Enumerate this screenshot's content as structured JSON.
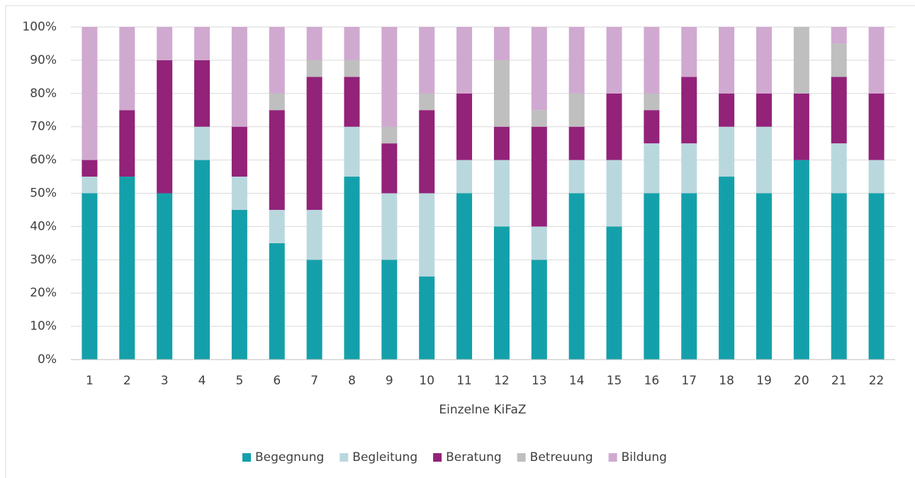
{
  "chart_data": {
    "type": "stacked_bar",
    "xlabel": "Einzelne KiFaZ",
    "categories": [
      "1",
      "2",
      "3",
      "4",
      "5",
      "6",
      "7",
      "8",
      "9",
      "10",
      "11",
      "12",
      "13",
      "14",
      "15",
      "16",
      "17",
      "18",
      "19",
      "20",
      "21",
      "22"
    ],
    "series": [
      {
        "name": "Begegnung",
        "color": "#14a0aa",
        "values": [
          50,
          55,
          50,
          60,
          45,
          35,
          30,
          55,
          30,
          25,
          50,
          40,
          30,
          50,
          40,
          50,
          50,
          55,
          50,
          60,
          50,
          50
        ]
      },
      {
        "name": "Begleitung",
        "color": "#b9d8de",
        "values": [
          5,
          0,
          0,
          10,
          10,
          10,
          15,
          15,
          20,
          25,
          10,
          20,
          10,
          10,
          20,
          15,
          15,
          15,
          20,
          0,
          15,
          10
        ]
      },
      {
        "name": "Beratung",
        "color": "#932279",
        "values": [
          5,
          20,
          40,
          20,
          15,
          30,
          40,
          15,
          15,
          25,
          20,
          10,
          30,
          10,
          20,
          10,
          20,
          10,
          10,
          20,
          20,
          20
        ]
      },
      {
        "name": "Betreuung",
        "color": "#bfbfbf",
        "values": [
          0,
          0,
          0,
          0,
          0,
          5,
          5,
          5,
          5,
          5,
          0,
          20,
          5,
          10,
          0,
          5,
          0,
          0,
          0,
          20,
          10,
          0
        ]
      },
      {
        "name": "Bildung",
        "color": "#d0a9d0",
        "values": [
          40,
          25,
          10,
          10,
          30,
          20,
          10,
          10,
          30,
          20,
          20,
          10,
          25,
          20,
          20,
          20,
          15,
          20,
          20,
          0,
          5,
          20
        ]
      }
    ],
    "ylim": [
      0,
      100
    ],
    "yticks": [
      {
        "value": 0,
        "label": "0%"
      },
      {
        "value": 10,
        "label": "10%"
      },
      {
        "value": 20,
        "label": "20%"
      },
      {
        "value": 30,
        "label": "30%"
      },
      {
        "value": 40,
        "label": "40%"
      },
      {
        "value": 50,
        "label": "50%"
      },
      {
        "value": 60,
        "label": "60%"
      },
      {
        "value": 70,
        "label": "70%"
      },
      {
        "value": 80,
        "label": "80%"
      },
      {
        "value": 90,
        "label": "90%"
      },
      {
        "value": 100,
        "label": "100%"
      }
    ],
    "grid": true,
    "legend": "bottom"
  }
}
